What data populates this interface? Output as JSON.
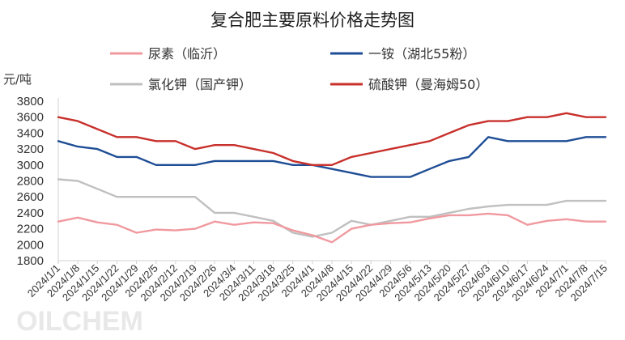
{
  "chart_data": {
    "type": "line",
    "title": "复合肥主要原料价格走势图",
    "ylabel": "元/吨",
    "ylim": [
      1800,
      3800
    ],
    "yticks": [
      1800,
      2000,
      2200,
      2400,
      2600,
      2800,
      3000,
      3200,
      3400,
      3600,
      3800
    ],
    "legend_position": "top",
    "grid": false,
    "x": [
      "2024/1/1",
      "2024/1/8",
      "2024/1/15",
      "2024/1/22",
      "2024/1/29",
      "2024/2/5",
      "2024/2/12",
      "2024/2/19",
      "2024/2/26",
      "2024/3/4",
      "2024/3/11",
      "2024/3/18",
      "2024/3/25",
      "2024/4/1",
      "2024/4/8",
      "2024/4/15",
      "2024/4/22",
      "2024/4/29",
      "2024/5/6",
      "2024/5/13",
      "2024/5/20",
      "2024/5/27",
      "2024/6/3",
      "2024/6/10",
      "2024/6/17",
      "2024/6/24",
      "2024/7/1",
      "2024/7/8",
      "2024/7/15"
    ],
    "watermark": "OILCHEM",
    "series": [
      {
        "name": "尿素（临沂）",
        "color": "#f0999f",
        "values": [
          2290,
          2340,
          2280,
          2250,
          2150,
          2190,
          2180,
          2200,
          2290,
          2250,
          2280,
          2270,
          2180,
          2120,
          2030,
          2200,
          2250,
          2270,
          2280,
          2330,
          2370,
          2370,
          2390,
          2370,
          2250,
          2300,
          2320,
          2290,
          2290
        ]
      },
      {
        "name": "一铵（湖北55粉）",
        "color": "#1f4e96",
        "values": [
          3300,
          3230,
          3200,
          3100,
          3100,
          3000,
          3000,
          3000,
          3050,
          3050,
          3050,
          3050,
          3000,
          3000,
          2950,
          2900,
          2850,
          2850,
          2850,
          2950,
          3050,
          3100,
          3350,
          3300,
          3300,
          3300,
          3300,
          3350,
          3350
        ]
      },
      {
        "name": "氯化钾（国产钾）",
        "color": "#c0c0c0",
        "values": [
          2820,
          2800,
          2700,
          2600,
          2600,
          2600,
          2600,
          2600,
          2400,
          2400,
          2350,
          2300,
          2150,
          2100,
          2150,
          2300,
          2250,
          2300,
          2350,
          2350,
          2400,
          2450,
          2480,
          2500,
          2500,
          2500,
          2550,
          2550,
          2550
        ]
      },
      {
        "name": "硫酸钾（曼海姆50）",
        "color": "#c8302c",
        "values": [
          3600,
          3550,
          3450,
          3350,
          3350,
          3300,
          3300,
          3200,
          3250,
          3250,
          3200,
          3150,
          3050,
          3000,
          3000,
          3100,
          3150,
          3200,
          3250,
          3300,
          3400,
          3500,
          3550,
          3550,
          3600,
          3600,
          3650,
          3600,
          3600
        ]
      }
    ]
  }
}
